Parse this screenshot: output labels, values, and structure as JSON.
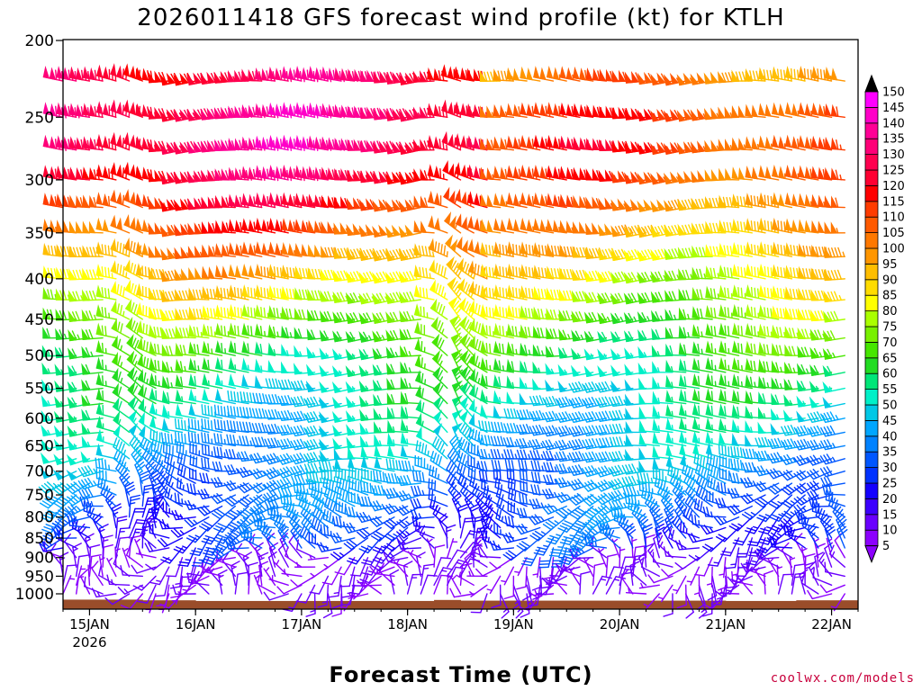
{
  "chart_data": {
    "type": "wind_barb_time_height",
    "title": "2026011418 GFS forecast wind profile (kt) for KTLH",
    "xlabel": "Forecast Time (UTC)",
    "credit": "coolwx.com/models",
    "x_ticks": [
      {
        "label": "15JAN",
        "sub": "2026",
        "hour": 6
      },
      {
        "label": "16JAN",
        "sub": "",
        "hour": 30
      },
      {
        "label": "17JAN",
        "sub": "",
        "hour": 54
      },
      {
        "label": "18JAN",
        "sub": "",
        "hour": 78
      },
      {
        "label": "19JAN",
        "sub": "",
        "hour": 102
      },
      {
        "label": "20JAN",
        "sub": "",
        "hour": 126
      },
      {
        "label": "21JAN",
        "sub": "",
        "hour": 150
      },
      {
        "label": "22JAN",
        "sub": "",
        "hour": 174
      }
    ],
    "xlim_hours": [
      0,
      180
    ],
    "ylabel": "Pressure (hPa)",
    "ylim_hpa": [
      1050,
      200
    ],
    "y_ticks": [
      "200",
      "250",
      "300",
      "350",
      "400",
      "450",
      "500",
      "550",
      "600",
      "650",
      "700",
      "750",
      "800",
      "850",
      "900",
      "950",
      "1000"
    ],
    "levels_hpa": [
      1000,
      975,
      950,
      925,
      900,
      875,
      850,
      825,
      800,
      775,
      750,
      725,
      700,
      675,
      650,
      625,
      600,
      575,
      550,
      525,
      500,
      475,
      450,
      425,
      400,
      375,
      350,
      325,
      300,
      275,
      250,
      225
    ],
    "time_step_hours": 3,
    "surface_pressure": [
      {
        "from_hour": 0,
        "to_hour": 18,
        "hpa": 1017
      },
      {
        "from_hour": 18,
        "to_hour": 30,
        "hpa": 1019
      },
      {
        "from_hour": 30,
        "to_hour": 84,
        "hpa": 1021
      },
      {
        "from_hour": 84,
        "to_hour": 90,
        "hpa": 1018
      },
      {
        "from_hour": 90,
        "to_hour": 150,
        "hpa": 1020
      },
      {
        "from_hour": 150,
        "to_hour": 166,
        "hpa": 1021
      },
      {
        "from_hour": 166,
        "to_hour": 180,
        "hpa": 1019
      }
    ],
    "wind_profile_model": {
      "speed_kt_by_level": {
        "1000": 8,
        "925": 18,
        "850": 28,
        "800": 32,
        "700": 40,
        "600": 50,
        "500": 62,
        "450": 72,
        "400": 82,
        "350": 95,
        "300": 108,
        "275": 112,
        "250": 110,
        "225": 102
      },
      "events": [
        {
          "name": "jet_core",
          "from_hour": 0,
          "to_hour": 96,
          "extra_kt_upper": 25
        },
        {
          "name": "trough_passage",
          "hour": 17,
          "veer_deg": 60
        },
        {
          "name": "trough_passage",
          "hour": 90,
          "veer_deg": 45
        }
      ]
    },
    "colorbar": {
      "ticks": [
        "5",
        "10",
        "15",
        "20",
        "25",
        "30",
        "35",
        "40",
        "45",
        "50",
        "55",
        "60",
        "65",
        "70",
        "75",
        "80",
        "85",
        "90",
        "95",
        "100",
        "105",
        "110",
        "115",
        "120",
        "125",
        "130",
        "135",
        "140",
        "145",
        "150"
      ],
      "colors": [
        "#8c00ff",
        "#6a00ff",
        "#3c00ff",
        "#1400ff",
        "#0032ff",
        "#0056ff",
        "#0082ff",
        "#00a6ff",
        "#00c8e6",
        "#00f0c8",
        "#00e678",
        "#22dc22",
        "#46e600",
        "#78f000",
        "#aaff00",
        "#ffff00",
        "#ffdc00",
        "#ffbe00",
        "#ff9600",
        "#ff7800",
        "#ff5a00",
        "#ff3c00",
        "#ff0000",
        "#ff0032",
        "#ff0050",
        "#ff0078",
        "#ff0096",
        "#ff00c8",
        "#ff00ff"
      ]
    },
    "colors": {
      "surface": "#9a4d2a",
      "frame": "#000000",
      "credit": "#c8003c"
    }
  }
}
